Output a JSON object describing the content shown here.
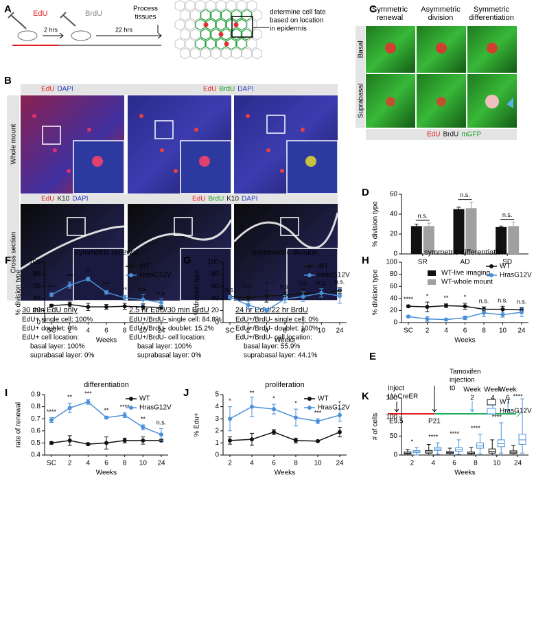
{
  "panels": {
    "A": {
      "label": "A",
      "pulse1": "EdU",
      "pulse2": "BrdU",
      "gap1": "2 hrs",
      "gap2": "22 hrs",
      "end": [
        "Process",
        "tissues"
      ],
      "fate": [
        "determine cell fate",
        "based on location",
        "in epidermis"
      ]
    },
    "B": {
      "label": "B",
      "rows": [
        "Whole mount",
        "Cross section"
      ],
      "top_headers": [
        [
          "EdU",
          "DAPI"
        ],
        [
          "EdU",
          "BrdU",
          "DAPI"
        ]
      ],
      "bottom_headers": [
        [
          "EdU",
          "K10",
          "DAPI"
        ],
        [
          "EdU",
          "BrdU",
          "K10",
          "DAPI"
        ]
      ],
      "captions": [
        {
          "title": "30 min EdU only",
          "lines": [
            "EdU+ single cell: 100%",
            "EdU+ doublet: 0%",
            "EdU+ cell location:",
            "basal layer: 100%",
            "suprabasal layer: 0%"
          ]
        },
        {
          "title": "2.5 hr EdU/30 min BrdU",
          "lines": [
            "EdU+/BrdU- single cell: 84.8%",
            "EdU+/BrdU- doublet: 15.2%",
            "EdU+/BrdU- cell location:",
            "basal layer: 100%",
            "suprabasal layer: 0%"
          ]
        },
        {
          "title": "24 hr EdU/22 hr BrdU",
          "lines": [
            "EdU+/BrdU- single cell: 0%",
            "EdU+/BrdU- doublet: 100%",
            "EdU+/BrdU- cell location:",
            "basal layer: 55.9%",
            "suprabasal layer: 44.1%"
          ]
        }
      ]
    },
    "C": {
      "label": "C",
      "columns": [
        [
          "Symmetric",
          "renewal"
        ],
        [
          "Asymmetric",
          "division"
        ],
        [
          "Symmetric",
          "differentiation"
        ]
      ],
      "rows": [
        "Basal",
        "Suprabasal"
      ],
      "stains": [
        "EdU",
        "BrdU",
        "mGFP"
      ]
    },
    "E": {
      "label": "E",
      "inject": [
        "Inject",
        "LV-CreER"
      ],
      "tamoxifen": [
        "Tamoxifen",
        "injection",
        "t0"
      ],
      "weeks": [
        [
          "Week",
          "2"
        ],
        [
          "Week",
          "4"
        ],
        [
          "Week",
          "6"
        ]
      ],
      "timepoints": [
        "E9.5",
        "P21"
      ]
    }
  },
  "chart_data": [
    {
      "type": "bar",
      "label": "D",
      "ylabel": "% division type",
      "categories": [
        "SR",
        "AD",
        "SD"
      ],
      "ylim": [
        0,
        60
      ],
      "yticks": [
        0,
        20,
        40,
        60
      ],
      "series": [
        {
          "name": "WT-live imaging",
          "color": "#111111",
          "values": [
            28,
            45,
            27
          ],
          "errors": [
            2,
            2,
            1
          ]
        },
        {
          "name": "WT-whole mount",
          "color": "#a0a0a0",
          "values": [
            28,
            46,
            28
          ],
          "errors": [
            3,
            6,
            4
          ]
        }
      ],
      "annotations": [
        "n.s.",
        "n.s.",
        "n.s."
      ],
      "legend": "below"
    },
    {
      "type": "line",
      "label": "F",
      "title": "symmetric renewal",
      "xlabel": "Weeks",
      "ylabel": "% division type",
      "categories": [
        "SC",
        "2",
        "4",
        "6",
        "8",
        "10",
        "24"
      ],
      "ylim": [
        0,
        100
      ],
      "yticks": [
        0,
        20,
        40,
        60,
        80,
        100
      ],
      "series": [
        {
          "name": "WT",
          "color": "#111111",
          "values": [
            28,
            30,
            26,
            26,
            27,
            26,
            25
          ],
          "errors": [
            2,
            4,
            6,
            4,
            5,
            5,
            3
          ]
        },
        {
          "name": "HrasG12V",
          "color": "#4a90d9",
          "values": [
            46,
            62,
            72,
            50,
            41,
            38,
            33
          ],
          "errors": [
            3,
            5,
            3,
            3,
            4,
            8,
            6
          ]
        }
      ],
      "annotations": [
        "***",
        "***",
        "**",
        "***",
        "**",
        "n.s.",
        "n.s."
      ],
      "legend": "upper right"
    },
    {
      "type": "line",
      "label": "G",
      "title": "asymmetric division",
      "xlabel": "Weeks",
      "ylabel": "% division type",
      "categories": [
        "SC",
        "2",
        "4",
        "6",
        "8",
        "10",
        "24"
      ],
      "ylim": [
        0,
        100
      ],
      "yticks": [
        0,
        20,
        40,
        60,
        80,
        100
      ],
      "series": [
        {
          "name": "WT",
          "color": "#111111",
          "values": [
            43,
            41,
            44,
            45,
            49,
            48,
            53
          ],
          "errors": [
            2,
            10,
            10,
            5,
            7,
            8,
            5
          ]
        },
        {
          "name": "HrasG12V",
          "color": "#4a90d9",
          "values": [
            42,
            29,
            20,
            39,
            43,
            49,
            44
          ],
          "errors": [
            3,
            6,
            3,
            6,
            8,
            7,
            12
          ]
        }
      ],
      "annotations": [
        "n.s.",
        "n.s.",
        "*",
        "n.s.",
        "n.s.",
        "n.s.",
        "n.s."
      ],
      "legend": "upper right"
    },
    {
      "type": "line",
      "label": "H",
      "title": "symmetric differentiation",
      "xlabel": "Weeks",
      "ylabel": "% division type",
      "categories": [
        "SC",
        "2",
        "4",
        "6",
        "8",
        "10",
        "24"
      ],
      "ylim": [
        0,
        100
      ],
      "yticks": [
        0,
        20,
        40,
        60,
        80,
        100
      ],
      "series": [
        {
          "name": "WT",
          "color": "#111111",
          "values": [
            27,
            26,
            28,
            27,
            22,
            22,
            21
          ],
          "errors": [
            2,
            8,
            3,
            5,
            4,
            5,
            4
          ]
        },
        {
          "name": "HrasG12V",
          "color": "#4a90d9",
          "values": [
            10,
            6,
            5,
            8,
            16,
            13,
            17
          ],
          "errors": [
            2,
            4,
            1,
            3,
            6,
            4,
            7
          ]
        }
      ],
      "annotations": [
        "****",
        "*",
        "**",
        "*",
        "n.s.",
        "n.s.",
        "n.s."
      ],
      "legend": "upper right"
    },
    {
      "type": "line",
      "label": "I",
      "title": "differentiation",
      "xlabel": "Weeks",
      "ylabel": "rate of renewal",
      "categories": [
        "SC",
        "2",
        "4",
        "6",
        "8",
        "10",
        "24"
      ],
      "ylim": [
        0.4,
        0.9
      ],
      "yticks": [
        0.4,
        0.5,
        0.6,
        0.7,
        0.8,
        0.9
      ],
      "series": [
        {
          "name": "WT",
          "color": "#111111",
          "values": [
            0.5,
            0.52,
            0.49,
            0.5,
            0.52,
            0.52,
            0.52
          ],
          "errors": [
            0.01,
            0.04,
            0.01,
            0.05,
            0.02,
            0.03,
            0.01
          ]
        },
        {
          "name": "HrasG12V",
          "color": "#4a90d9",
          "values": [
            0.69,
            0.79,
            0.84,
            0.71,
            0.73,
            0.63,
            0.57
          ],
          "errors": [
            0.02,
            0.04,
            0.02,
            0.01,
            0.02,
            0.02,
            0.05
          ]
        }
      ],
      "annotations": [
        "****",
        "**",
        "***",
        "**",
        "****",
        "**",
        "n.s."
      ],
      "legend": "upper right"
    },
    {
      "type": "line",
      "label": "J",
      "title": "proliferation",
      "xlabel": "Weeks",
      "ylabel": "% Edu+",
      "categories": [
        "2",
        "4",
        "6",
        "8",
        "10",
        "24"
      ],
      "ylim": [
        0,
        5
      ],
      "yticks": [
        0,
        1,
        2,
        3,
        4,
        5
      ],
      "series": [
        {
          "name": "WT",
          "color": "#111111",
          "values": [
            1.2,
            1.3,
            1.9,
            1.2,
            1.15,
            1.9
          ],
          "errors": [
            0.3,
            0.5,
            0.2,
            0.2,
            0.05,
            0.4
          ]
        },
        {
          "name": "HrasG12V",
          "color": "#4a90d9",
          "values": [
            3.0,
            4.0,
            3.8,
            3.1,
            2.8,
            3.3
          ],
          "errors": [
            1.0,
            0.8,
            0.4,
            0.7,
            0.2,
            0.5
          ]
        }
      ],
      "annotations": [
        "*",
        "**",
        "*",
        "*",
        "***",
        "*"
      ],
      "legend": "upper right"
    },
    {
      "type": "box",
      "label": "K",
      "xlabel": "Weeks",
      "ylabel": "# of cells",
      "categories": [
        "2",
        "4",
        "6",
        "8",
        "10",
        "24"
      ],
      "ylim": [
        0,
        150
      ],
      "yticks": [
        0,
        50,
        100,
        150
      ],
      "series": [
        {
          "name": "WT",
          "color": "#111111",
          "boxes": [
            {
              "min": 0,
              "q1": 3,
              "median": 5,
              "q3": 8,
              "max": 15
            },
            {
              "min": 0,
              "q1": 5,
              "median": 8,
              "q3": 12,
              "max": 28
            },
            {
              "min": 0,
              "q1": 4,
              "median": 6,
              "q3": 9,
              "max": 18
            },
            {
              "min": 0,
              "q1": 3,
              "median": 5,
              "q3": 8,
              "max": 20
            },
            {
              "min": 0,
              "q1": 5,
              "median": 10,
              "q3": 16,
              "max": 40
            },
            {
              "min": 0,
              "q1": 4,
              "median": 7,
              "q3": 11,
              "max": 25
            }
          ]
        },
        {
          "name": "HrasG12V",
          "color": "#4a90d9",
          "boxes": [
            {
              "min": 0,
              "q1": 6,
              "median": 9,
              "q3": 12,
              "max": 20
            },
            {
              "min": 2,
              "q1": 12,
              "median": 16,
              "q3": 20,
              "max": 32
            },
            {
              "min": 2,
              "q1": 10,
              "median": 14,
              "q3": 19,
              "max": 40
            },
            {
              "min": 3,
              "q1": 18,
              "median": 24,
              "q3": 32,
              "max": 55
            },
            {
              "min": 5,
              "q1": 22,
              "median": 30,
              "q3": 40,
              "max": 85
            },
            {
              "min": 5,
              "q1": 28,
              "median": 40,
              "q3": 55,
              "max": 148
            }
          ]
        }
      ],
      "annotations": [
        "*",
        "****",
        "****",
        "****",
        "****",
        "****"
      ],
      "legend": "upper right"
    }
  ]
}
